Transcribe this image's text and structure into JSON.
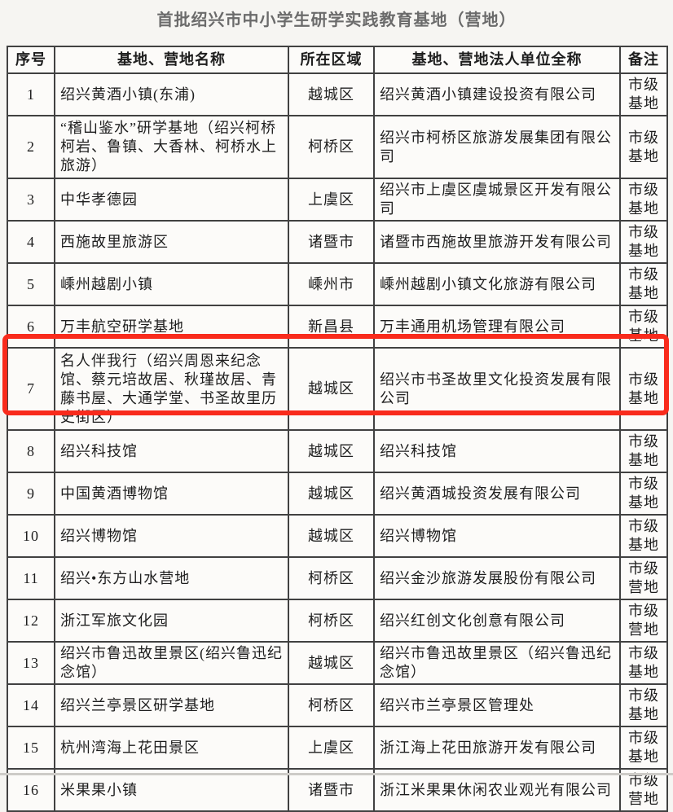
{
  "title": "首批绍兴市中小学生研学实践教育基地（营地）",
  "table": {
    "headers": [
      "序号",
      "基地、营地名称",
      "所在区域",
      "基地、营地法人单位全称",
      "备注"
    ],
    "rows": [
      {
        "no": "1",
        "name": "绍兴黄酒小镇(东浦)",
        "region": "越城区",
        "entity": "绍兴黄酒小镇建设投资有限公司",
        "note": "市级基地"
      },
      {
        "no": "2",
        "name": "“稽山鉴水”研学基地（绍兴柯桥柯岩、鲁镇、大香林、柯桥水上旅游）",
        "region": "柯桥区",
        "entity": "绍兴市柯桥区旅游发展集团有限公司",
        "note": "市级基地"
      },
      {
        "no": "3",
        "name": "中华孝德园",
        "region": "上虞区",
        "entity": "绍兴市上虞区虞城景区开发有限公司",
        "note": "市级基地"
      },
      {
        "no": "4",
        "name": "西施故里旅游区",
        "region": "诸暨市",
        "entity": "诸暨市西施故里旅游开发有限公司",
        "note": "市级基地"
      },
      {
        "no": "5",
        "name": "嵊州越剧小镇",
        "region": "嵊州市",
        "entity": "嵊州越剧小镇文化旅游有限公司",
        "note": "市级基地"
      },
      {
        "no": "6",
        "name": "万丰航空研学基地",
        "region": "新昌县",
        "entity": "万丰通用机场管理有限公司",
        "note": "市级基地"
      },
      {
        "no": "7",
        "name": "名人伴我行（绍兴周恩来纪念馆、蔡元培故居、秋瑾故居、青藤书屋、大通学堂、书圣故里历史街区）",
        "region": "越城区",
        "entity": "绍兴市书圣故里文化投资发展有限公司",
        "note": "市级基地"
      },
      {
        "no": "8",
        "name": "绍兴科技馆",
        "region": "越城区",
        "entity": "绍兴科技馆",
        "note": "市级基地"
      },
      {
        "no": "9",
        "name": "中国黄酒博物馆",
        "region": "越城区",
        "entity": "绍兴黄酒城投资发展有限公司",
        "note": "市级基地"
      },
      {
        "no": "10",
        "name": "绍兴博物馆",
        "region": "越城区",
        "entity": "绍兴博物馆",
        "note": "市级基地"
      },
      {
        "no": "11",
        "name": "绍兴•东方山水营地",
        "region": "柯桥区",
        "entity": "绍兴金沙旅游发展股份有限公司",
        "note": "市级营地"
      },
      {
        "no": "12",
        "name": "浙江军旅文化园",
        "region": "柯桥区",
        "entity": "绍兴红创文化创意有限公司",
        "note": "市级营地"
      },
      {
        "no": "13",
        "name": "绍兴市鲁迅故里景区(绍兴鲁迅纪念馆）",
        "region": "越城区",
        "entity": "绍兴市鲁迅故里景区（绍兴鲁迅纪念馆）",
        "note": "市级基地"
      },
      {
        "no": "14",
        "name": "绍兴兰亭景区研学基地",
        "region": "柯桥区",
        "entity": "绍兴市兰亭景区管理处",
        "note": "市级基地"
      },
      {
        "no": "15",
        "name": "杭州湾海上花田景区",
        "region": "上虞区",
        "entity": "浙江海上花田旅游开发有限公司",
        "note": "市级基地"
      },
      {
        "no": "16",
        "name": "米果果小镇",
        "region": "诸暨市",
        "entity": "浙江米果果休闲农业观光有限公司",
        "note": "市级营地"
      }
    ]
  },
  "highlight": {
    "row": 7,
    "color": "#f92b1c"
  }
}
